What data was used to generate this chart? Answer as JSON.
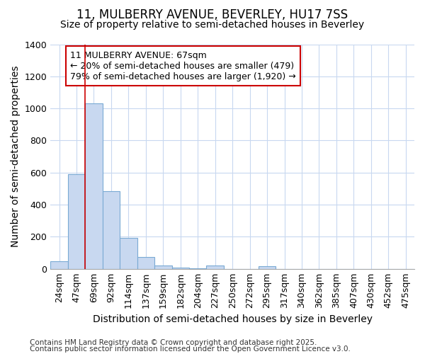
{
  "title1": "11, MULBERRY AVENUE, BEVERLEY, HU17 7SS",
  "title2": "Size of property relative to semi-detached houses in Beverley",
  "xlabel": "Distribution of semi-detached houses by size in Beverley",
  "ylabel": "Number of semi-detached properties",
  "categories": [
    "24sqm",
    "47sqm",
    "69sqm",
    "92sqm",
    "114sqm",
    "137sqm",
    "159sqm",
    "182sqm",
    "204sqm",
    "227sqm",
    "250sqm",
    "272sqm",
    "295sqm",
    "317sqm",
    "340sqm",
    "362sqm",
    "385sqm",
    "407sqm",
    "430sqm",
    "452sqm",
    "475sqm"
  ],
  "values": [
    47,
    592,
    1030,
    486,
    193,
    73,
    20,
    10,
    5,
    20,
    0,
    0,
    15,
    0,
    0,
    0,
    0,
    0,
    0,
    0,
    0
  ],
  "bar_color": "#c8d8f0",
  "bar_edgecolor": "#7aaad4",
  "bar_linewidth": 0.8,
  "red_line_bin_index": 2,
  "red_line_color": "#cc0000",
  "annotation_text": "11 MULBERRY AVENUE: 67sqm\n← 20% of semi-detached houses are smaller (479)\n79% of semi-detached houses are larger (1,920) →",
  "annotation_box_edgecolor": "#cc0000",
  "ylim": [
    0,
    1400
  ],
  "yticks": [
    0,
    200,
    400,
    600,
    800,
    1000,
    1200,
    1400
  ],
  "footer1": "Contains HM Land Registry data © Crown copyright and database right 2025.",
  "footer2": "Contains public sector information licensed under the Open Government Licence v3.0.",
  "bg_color": "#ffffff",
  "plot_bg_color": "#ffffff",
  "grid_color": "#c8d8f0",
  "title1_fontsize": 12,
  "title2_fontsize": 10,
  "axis_label_fontsize": 10,
  "tick_fontsize": 9,
  "footer_fontsize": 7.5,
  "annotation_fontsize": 9
}
